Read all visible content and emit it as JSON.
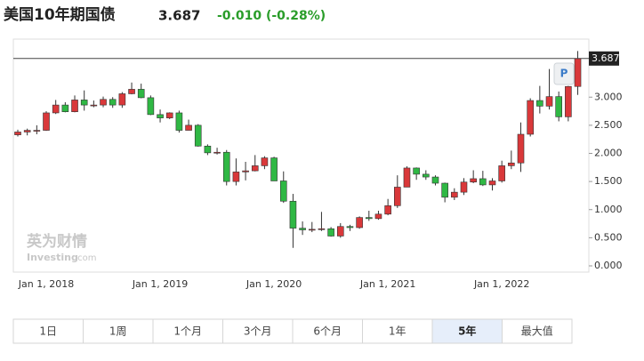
{
  "header": {
    "title": "美国10年期国债",
    "price": "3.687",
    "change": "-0.010 (-0.28%)"
  },
  "chart_data": {
    "type": "candlestick",
    "categories": [
      null,
      null,
      null,
      "Jan 1, 2018",
      null,
      null,
      null,
      null,
      null,
      null,
      null,
      null,
      null,
      null,
      null,
      "Jan 1, 2019",
      null,
      null,
      null,
      null,
      null,
      null,
      null,
      null,
      null,
      null,
      null,
      "Jan 1, 2020",
      null,
      null,
      null,
      null,
      null,
      null,
      null,
      null,
      null,
      null,
      null,
      "Jan 1, 2021",
      null,
      null,
      null,
      null,
      null,
      null,
      null,
      null,
      null,
      null,
      null,
      "Jan 1, 2022",
      null,
      null,
      null,
      null,
      null,
      null,
      null,
      null
    ],
    "open": [
      2.33,
      2.38,
      2.41,
      2.41,
      2.72,
      2.86,
      2.74,
      2.95,
      2.86,
      2.86,
      2.96,
      2.86,
      3.06,
      3.14,
      2.99,
      2.69,
      2.63,
      2.72,
      2.41,
      2.5,
      2.13,
      2.01,
      2.02,
      1.5,
      1.67,
      1.69,
      1.78,
      1.92,
      1.51,
      1.15,
      0.67,
      0.64,
      0.65,
      0.66,
      0.53,
      0.7,
      0.68,
      0.86,
      0.84,
      0.92,
      1.07,
      1.4,
      1.74,
      1.63,
      1.58,
      1.47,
      1.22,
      1.31,
      1.49,
      1.55,
      1.44,
      1.51,
      1.78,
      1.83,
      2.34,
      2.94,
      2.84,
      3.01,
      2.65,
      3.19
    ],
    "high": [
      2.42,
      2.44,
      2.5,
      2.75,
      2.95,
      2.91,
      3.03,
      3.12,
      2.94,
      3.01,
      3.0,
      3.09,
      3.26,
      3.24,
      3.03,
      2.78,
      2.73,
      2.76,
      2.6,
      2.52,
      2.16,
      2.1,
      2.06,
      1.91,
      1.85,
      1.97,
      1.95,
      1.94,
      1.68,
      1.28,
      0.79,
      0.78,
      0.96,
      0.69,
      0.76,
      0.73,
      0.88,
      0.98,
      0.98,
      1.19,
      1.61,
      1.77,
      1.75,
      1.7,
      1.61,
      1.48,
      1.38,
      1.56,
      1.7,
      1.69,
      1.56,
      1.87,
      2.05,
      2.55,
      2.98,
      3.2,
      3.5,
      3.1,
      3.2,
      3.82
    ],
    "low": [
      2.3,
      2.32,
      2.34,
      2.4,
      2.7,
      2.73,
      2.73,
      2.76,
      2.82,
      2.82,
      2.81,
      2.81,
      3.05,
      2.98,
      2.68,
      2.55,
      2.61,
      2.37,
      2.41,
      2.12,
      1.97,
      1.98,
      1.43,
      1.43,
      1.52,
      1.68,
      1.72,
      1.51,
      1.12,
      0.32,
      0.55,
      0.6,
      0.62,
      0.52,
      0.5,
      0.62,
      0.66,
      0.8,
      0.82,
      0.9,
      1.03,
      1.4,
      1.53,
      1.53,
      1.43,
      1.13,
      1.17,
      1.26,
      1.47,
      1.42,
      1.34,
      1.48,
      1.72,
      1.67,
      2.3,
      2.71,
      2.78,
      2.57,
      2.57,
      3.04
    ],
    "close": [
      2.38,
      2.41,
      2.41,
      2.72,
      2.86,
      2.74,
      2.95,
      2.86,
      2.86,
      2.96,
      2.86,
      3.06,
      3.14,
      2.99,
      2.69,
      2.63,
      2.72,
      2.41,
      2.5,
      2.13,
      2.01,
      2.02,
      1.5,
      1.67,
      1.69,
      1.78,
      1.92,
      1.51,
      1.15,
      0.67,
      0.64,
      0.65,
      0.66,
      0.53,
      0.7,
      0.68,
      0.86,
      0.84,
      0.92,
      1.07,
      1.4,
      1.74,
      1.63,
      1.58,
      1.47,
      1.22,
      1.31,
      1.49,
      1.55,
      1.44,
      1.51,
      1.78,
      1.83,
      2.34,
      2.94,
      2.84,
      3.01,
      2.65,
      3.19,
      3.687
    ],
    "up_color": "#d9383a",
    "down_color": "#2fb844",
    "ylim": [
      0,
      4
    ],
    "yticks": [
      {
        "value": 0,
        "label": "0.000"
      },
      {
        "value": 0.5,
        "label": "0.500"
      },
      {
        "value": 1,
        "label": "1.000"
      },
      {
        "value": 1.5,
        "label": "1.500"
      },
      {
        "value": 2,
        "label": "2.000"
      },
      {
        "value": 2.5,
        "label": "2.500"
      },
      {
        "value": 3,
        "label": "3.000"
      }
    ],
    "grid": false
  },
  "watermark": {
    "brand": "英为财情",
    "site": "Investing",
    "domain": ".com"
  },
  "p_button": "P",
  "ranges": [
    "1日",
    "1周",
    "1个月",
    "3个月",
    "6个月",
    "1年",
    "5年",
    "最大值"
  ],
  "active_range": 6
}
